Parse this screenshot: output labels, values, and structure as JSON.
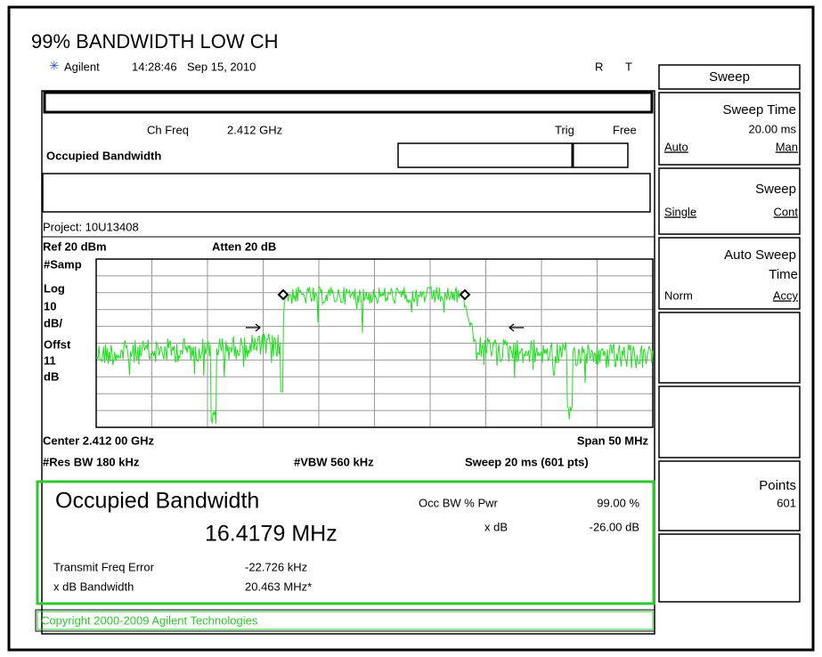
{
  "header": {
    "title": "99% BANDWIDTH LOW CH",
    "brand": "Agilent",
    "time": "14:28:46",
    "date": "Sep 15, 2010",
    "indicators": [
      "R",
      "T"
    ]
  },
  "status": {
    "ch_freq_label": "Ch Freq",
    "ch_freq": "2.412 GHz",
    "trig_label": "Trig",
    "trig": "Free",
    "mode": "Occupied Bandwidth",
    "project": "Project: 10U13408"
  },
  "display": {
    "ref": "Ref 20 dBm",
    "atten": "Atten 20 dB",
    "left_labels": [
      "#Samp",
      "Log",
      "10",
      "dB/",
      "Offst",
      "11",
      "dB"
    ],
    "center": "Center 2.412 00 GHz",
    "span": "Span 50 MHz",
    "res_bw": "#Res BW 180 kHz",
    "vbw": "#VBW 560 kHz",
    "sweep": "Sweep 20 ms (601 pts)"
  },
  "results": {
    "title": "Occupied Bandwidth",
    "value": "16.4179 MHz",
    "occ_label": "Occ BW % Pwr",
    "occ_value": "99.00 %",
    "xdb_label": "x dB",
    "xdb_value": "-26.00 dB",
    "freq_err_label": "Transmit Freq Error",
    "freq_err": "-22.726 kHz",
    "xdb_bw_label": "x dB Bandwidth",
    "xdb_bw": "20.463 MHz*"
  },
  "copyright": "Copyright 2000-2009 Agilent Technologies",
  "softkeys": {
    "menu": "Sweep",
    "sweep_time": {
      "title": "Sweep Time",
      "value": "20.00 ms",
      "left": "Auto",
      "right": "Man"
    },
    "sweep": {
      "title": "Sweep",
      "left": "Single",
      "right": "Cont"
    },
    "auto_sweep": {
      "title": [
        "Auto Sweep",
        "Time"
      ],
      "left": "Norm",
      "right": "Accy"
    },
    "points": {
      "title": "Points",
      "value": "601"
    }
  }
}
